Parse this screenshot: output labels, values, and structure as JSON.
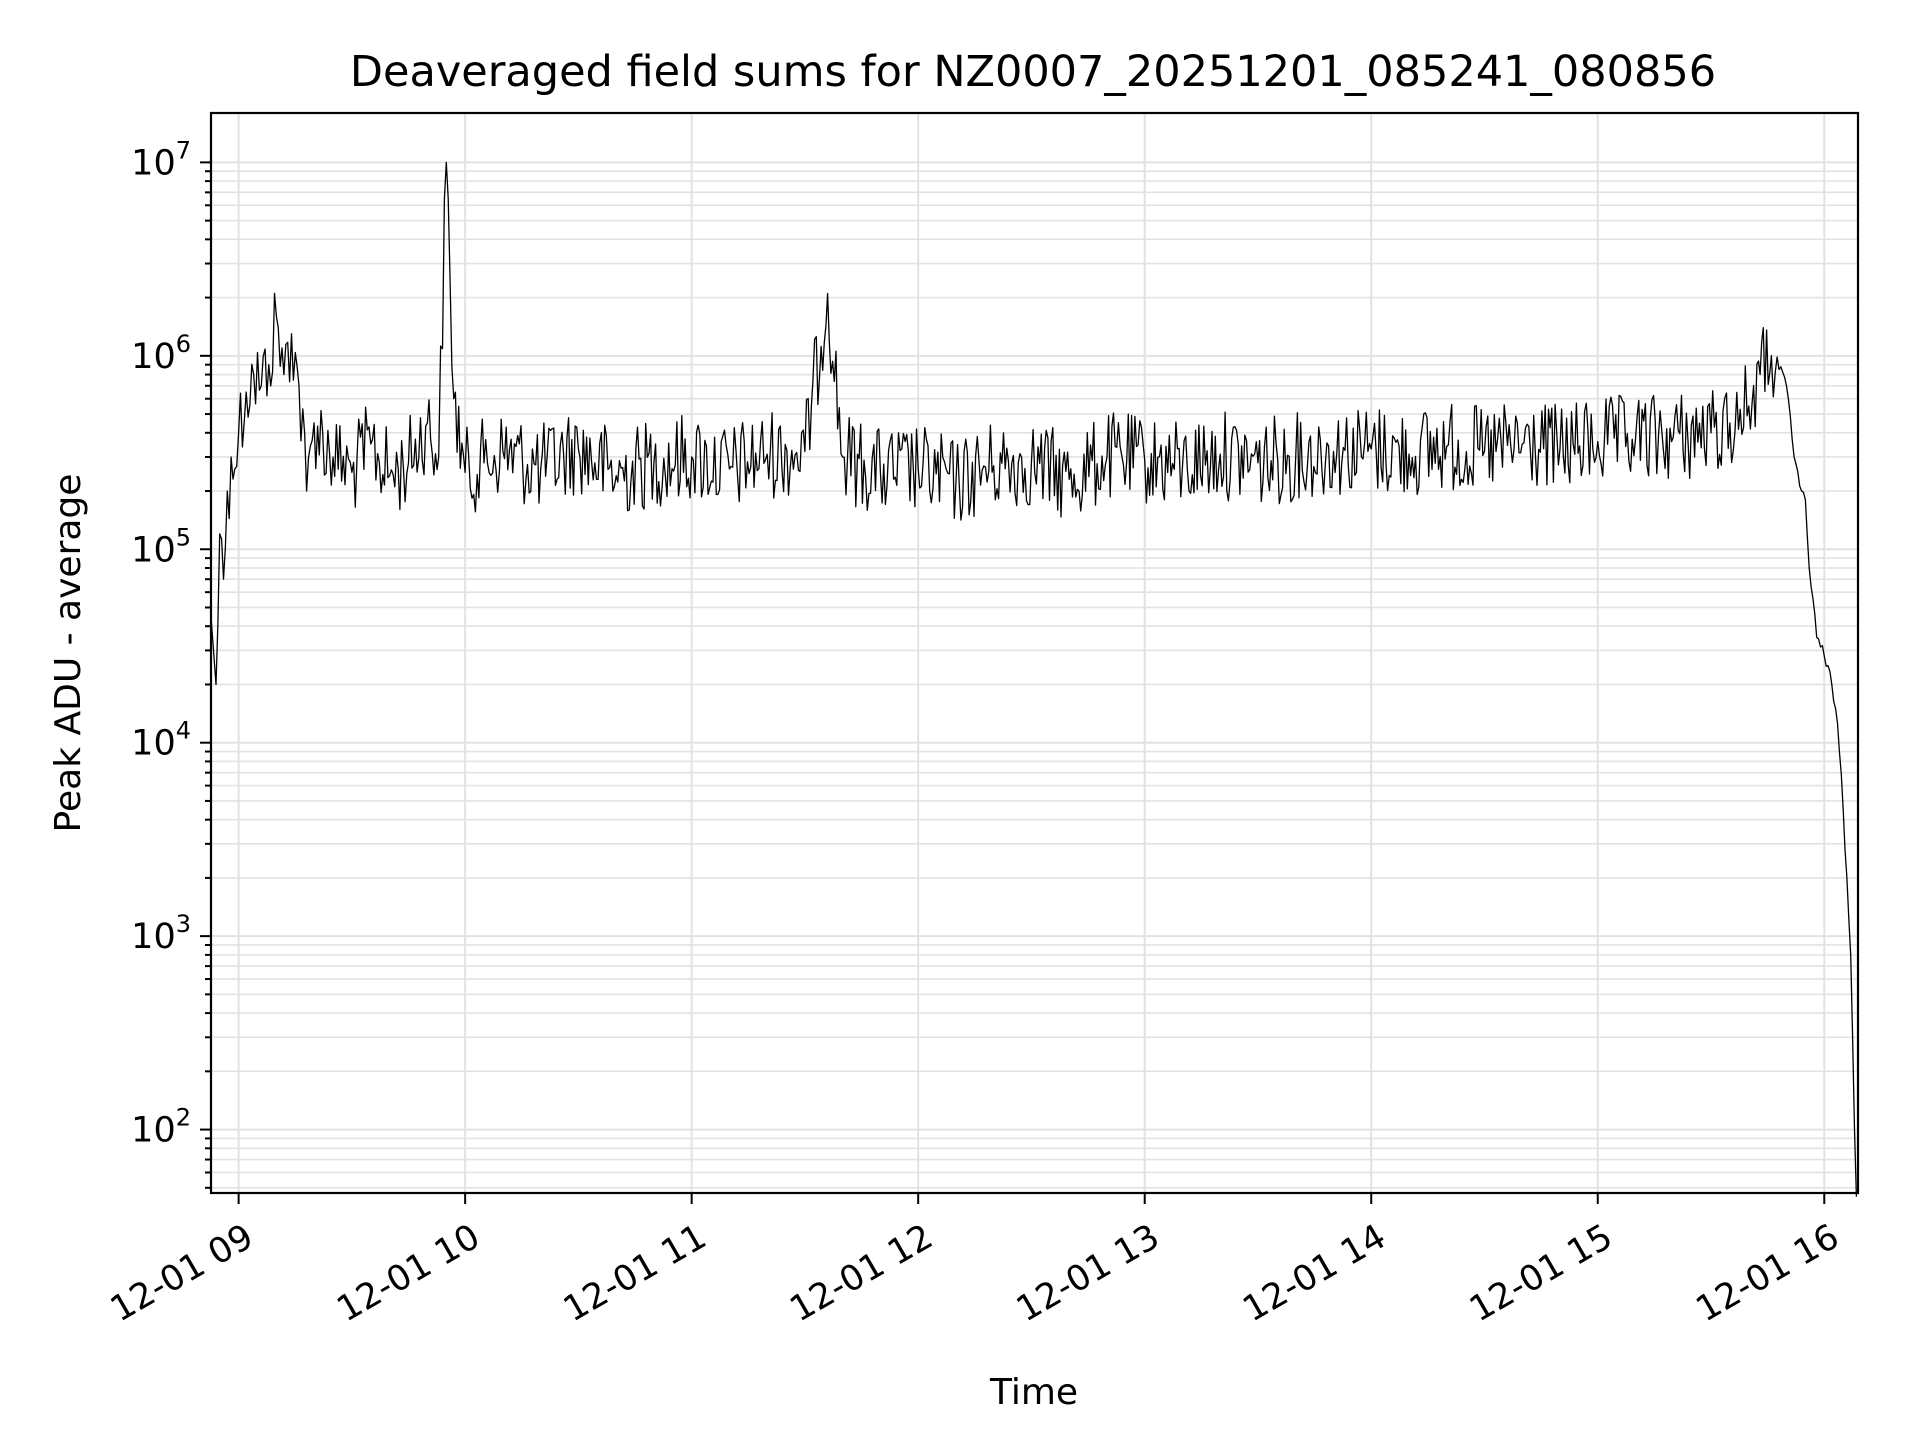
{
  "chart_data": {
    "type": "line",
    "title": "Deaveraged field sums for NZ0007_20251201_085241_080856",
    "xlabel": "Time",
    "ylabel": "Peak ADU - average",
    "y_scale": "log",
    "ylim": [
      47,
      18000000
    ],
    "xlim": [
      "2025-12-01 08:52:41",
      "2025-12-01 16:08:56"
    ],
    "grid": true,
    "x_ticks": [
      {
        "value": "2025-12-01 09:00",
        "label": "12-01 09"
      },
      {
        "value": "2025-12-01 10:00",
        "label": "12-01 10"
      },
      {
        "value": "2025-12-01 11:00",
        "label": "12-01 11"
      },
      {
        "value": "2025-12-01 12:00",
        "label": "12-01 12"
      },
      {
        "value": "2025-12-01 13:00",
        "label": "12-01 13"
      },
      {
        "value": "2025-12-01 14:00",
        "label": "12-01 14"
      },
      {
        "value": "2025-12-01 15:00",
        "label": "12-01 15"
      },
      {
        "value": "2025-12-01 16:00",
        "label": "12-01 16"
      }
    ],
    "y_ticks": [
      {
        "value": 100,
        "base": "10",
        "exp": "2"
      },
      {
        "value": 1000,
        "base": "10",
        "exp": "3"
      },
      {
        "value": 10000,
        "base": "10",
        "exp": "4"
      },
      {
        "value": 100000,
        "base": "10",
        "exp": "5"
      },
      {
        "value": 1000000,
        "base": "10",
        "exp": "6"
      },
      {
        "value": 10000000,
        "base": "10",
        "exp": "7"
      }
    ],
    "series": [
      {
        "color": "#000000",
        "x": [
          "2025-12-01 08:52:41",
          "2025-12-01 08:53:20",
          "2025-12-01 08:54:00",
          "2025-12-01 08:55:00",
          "2025-12-01 08:56:00",
          "2025-12-01 08:57:00",
          "2025-12-01 08:58:00",
          "2025-12-01 08:59:00",
          "2025-12-01 09:00:00",
          "2025-12-01 09:02:00",
          "2025-12-01 09:04:00",
          "2025-12-01 09:06:00",
          "2025-12-01 09:08:00",
          "2025-12-01 09:10:00",
          "2025-12-01 09:12:00",
          "2025-12-01 09:14:00",
          "2025-12-01 09:16:00",
          "2025-12-01 09:18:00",
          "2025-12-01 09:20:00",
          "2025-12-01 09:25:00",
          "2025-12-01 09:30:00",
          "2025-12-01 09:35:00",
          "2025-12-01 09:40:00",
          "2025-12-01 09:45:00",
          "2025-12-01 09:50:00",
          "2025-12-01 09:53:00",
          "2025-12-01 09:55:00",
          "2025-12-01 09:57:00",
          "2025-12-01 10:00:00",
          "2025-12-01 10:05:00",
          "2025-12-01 10:10:00",
          "2025-12-01 10:20:00",
          "2025-12-01 10:30:00",
          "2025-12-01 10:40:00",
          "2025-12-01 10:50:00",
          "2025-12-01 11:00:00",
          "2025-12-01 11:10:00",
          "2025-12-01 11:20:00",
          "2025-12-01 11:30:00",
          "2025-12-01 11:36:00",
          "2025-12-01 11:40:00",
          "2025-12-01 11:50:00",
          "2025-12-01 12:00:00",
          "2025-12-01 12:10:00",
          "2025-12-01 12:20:00",
          "2025-12-01 12:30:00",
          "2025-12-01 12:40:00",
          "2025-12-01 12:50:00",
          "2025-12-01 13:00:00",
          "2025-12-01 13:10:00",
          "2025-12-01 13:20:00",
          "2025-12-01 13:30:00",
          "2025-12-01 13:40:00",
          "2025-12-01 13:50:00",
          "2025-12-01 14:00:00",
          "2025-12-01 14:10:00",
          "2025-12-01 14:20:00",
          "2025-12-01 14:30:00",
          "2025-12-01 14:40:00",
          "2025-12-01 14:50:00",
          "2025-12-01 15:00:00",
          "2025-12-01 15:10:00",
          "2025-12-01 15:20:00",
          "2025-12-01 15:30:00",
          "2025-12-01 15:35:00",
          "2025-12-01 15:40:00",
          "2025-12-01 15:43:00",
          "2025-12-01 15:46:00",
          "2025-12-01 15:48:00",
          "2025-12-01 15:50:00",
          "2025-12-01 15:52:00",
          "2025-12-01 15:54:00",
          "2025-12-01 15:55:00",
          "2025-12-01 15:56:00",
          "2025-12-01 15:58:00",
          "2025-12-01 16:00:00",
          "2025-12-01 16:01:00",
          "2025-12-01 16:02:00",
          "2025-12-01 16:03:00",
          "2025-12-01 16:04:00",
          "2025-12-01 16:05:00",
          "2025-12-01 16:06:00",
          "2025-12-01 16:07:00",
          "2025-12-01 16:07:30",
          "2025-12-01 16:08:00",
          "2025-12-01 16:08:30"
        ],
        "y": [
          45000,
          30000,
          20000,
          120000,
          70000,
          200000,
          300000,
          260000,
          400000,
          650000,
          800000,
          700000,
          900000,
          1600000,
          800000,
          1300000,
          700000,
          200000,
          450000,
          300000,
          250000,
          350000,
          240000,
          280000,
          450000,
          300000,
          10000000,
          600000,
          250000,
          280000,
          320000,
          260000,
          330000,
          240000,
          280000,
          300000,
          260000,
          310000,
          320000,
          2100000,
          300000,
          250000,
          260000,
          220000,
          270000,
          280000,
          230000,
          300000,
          290000,
          270000,
          310000,
          280000,
          300000,
          320000,
          330000,
          310000,
          340000,
          320000,
          350000,
          330000,
          360000,
          370000,
          380000,
          400000,
          450000,
          550000,
          800000,
          1000000,
          850000,
          700000,
          300000,
          200000,
          180000,
          80000,
          35000,
          28000,
          25000,
          20000,
          15000,
          9000,
          4500,
          2000,
          800,
          300,
          100,
          45
        ]
      }
    ]
  }
}
